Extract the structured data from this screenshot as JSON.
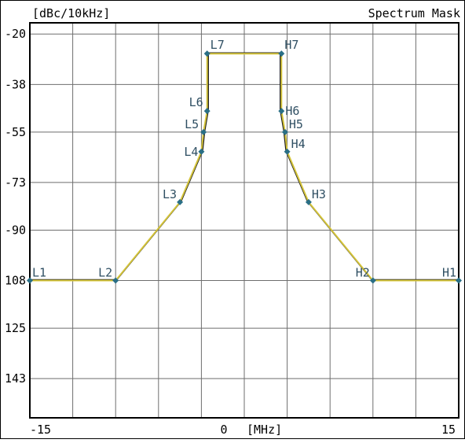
{
  "header": {
    "unit_label": "[dBc/10kHz]",
    "title": "Spectrum Mask"
  },
  "colors": {
    "background": "#ffffff",
    "frame": "#000000",
    "grid": "#6e6e6e",
    "mask_line": "#d4c43a",
    "trace_line": "#1a1a1a",
    "marker": "#2a6f86",
    "label_text": "#2f4f63"
  },
  "chart_data": {
    "type": "line",
    "title": "Spectrum Mask",
    "xlabel": "[MHz]",
    "ylabel": "[dBc/10kHz]",
    "xlim": [
      -15,
      15
    ],
    "ylim": [
      -157,
      -16
    ],
    "y_reversed_display": true,
    "grid": true,
    "x_tick_labels": [
      {
        "value": -15,
        "label": "-15"
      },
      {
        "value": 0,
        "label": "0"
      },
      {
        "value": 15,
        "label": "15"
      }
    ],
    "x_unit_label": "[MHz]",
    "y_tick_labels": [
      {
        "value": -20,
        "label": "-20"
      },
      {
        "value": -38,
        "label": "-38"
      },
      {
        "value": -55,
        "label": "-55"
      },
      {
        "value": -73,
        "label": "-73"
      },
      {
        "value": -90,
        "label": "-90"
      },
      {
        "value": -108,
        "label": "108"
      },
      {
        "value": -125,
        "label": "125"
      },
      {
        "value": -143,
        "label": "143"
      }
    ],
    "points": [
      {
        "name": "L1",
        "x": -15.0,
        "y": -108.0
      },
      {
        "name": "L2",
        "x": -9.0,
        "y": -108.0
      },
      {
        "name": "L3",
        "x": -4.5,
        "y": -80.0
      },
      {
        "name": "L4",
        "x": -3.0,
        "y": -62.0
      },
      {
        "name": "L5",
        "x": -2.85,
        "y": -55.0
      },
      {
        "name": "L6",
        "x": -2.6,
        "y": -47.5
      },
      {
        "name": "L7",
        "x": -2.6,
        "y": -27.0
      },
      {
        "name": "H7",
        "x": 2.6,
        "y": -27.0
      },
      {
        "name": "H6",
        "x": 2.6,
        "y": -47.5
      },
      {
        "name": "H5",
        "x": 2.85,
        "y": -55.0
      },
      {
        "name": "H4",
        "x": 3.0,
        "y": -62.0
      },
      {
        "name": "H3",
        "x": 4.5,
        "y": -80.0
      },
      {
        "name": "H2",
        "x": 9.0,
        "y": -108.0
      },
      {
        "name": "H1",
        "x": 15.0,
        "y": -108.0
      }
    ]
  }
}
